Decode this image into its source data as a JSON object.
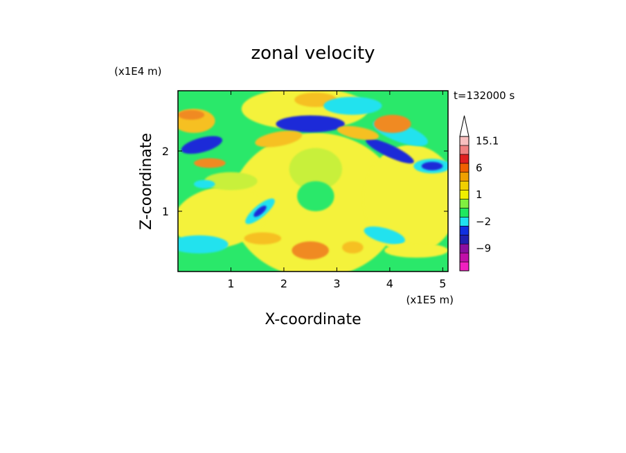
{
  "chart_data": {
    "type": "heatmap",
    "title": "zonal velocity",
    "xlabel": "X-coordinate",
    "ylabel": "Z-coordinate",
    "x_unit": "(x1E5 m)",
    "y_unit": "(x1E4 m)",
    "time_label": "t=132000 s",
    "xlim": [
      0,
      5.1
    ],
    "ylim": [
      0,
      3
    ],
    "x_ticks": [
      "1",
      "2",
      "3",
      "4",
      "5"
    ],
    "x_tick_values": [
      1,
      2,
      3,
      4,
      5
    ],
    "y_ticks": [
      "1",
      "2"
    ],
    "y_tick_values": [
      1,
      2
    ],
    "colorbar": {
      "labels": [
        "15.1",
        "6",
        "1",
        "−2",
        "−9"
      ],
      "label_levels": [
        15.1,
        6,
        1,
        -2,
        -9
      ],
      "levels": [
        -15,
        -12,
        -9,
        -6,
        -3,
        -2,
        -1,
        0,
        1,
        2,
        3,
        6,
        9,
        12,
        15.1
      ],
      "colors": [
        "#f020c0",
        "#c010a8",
        "#8a10a0",
        "#2020b0",
        "#1030e0",
        "#20e0f0",
        "#20e860",
        "#80f040",
        "#f0f000",
        "#f0d000",
        "#f0a000",
        "#f06000",
        "#e02020",
        "#f08080",
        "#f8c0c0"
      ],
      "extend_top": true
    },
    "palette": {
      "strong_neg": "#1a2ad8",
      "neg": "#22e2ee",
      "weak_neg": "#2ae86a",
      "near_zero": "#c8f03a",
      "weak_pos": "#f4f23a",
      "pos": "#f6c020",
      "strong_pos": "#f08a20"
    }
  }
}
